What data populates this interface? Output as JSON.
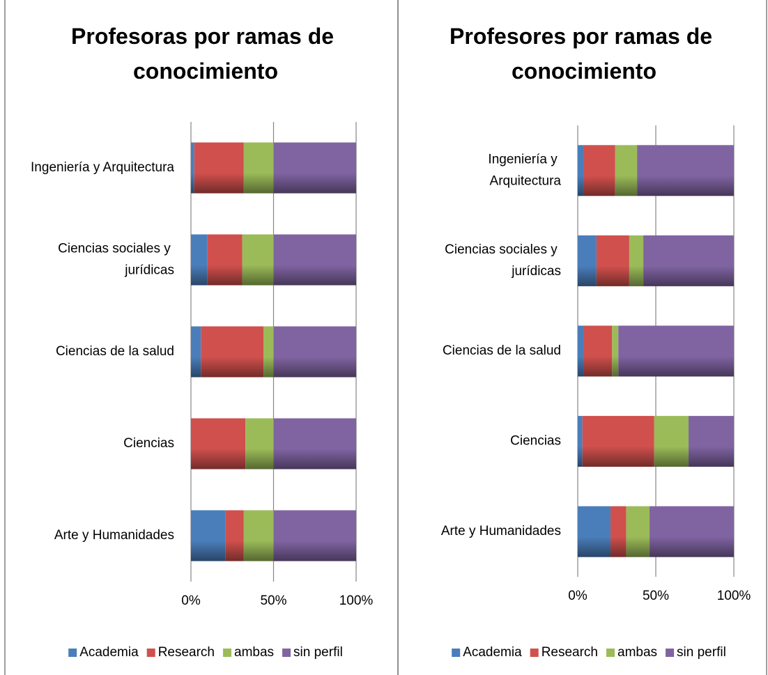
{
  "charts": [
    {
      "chart_data": {
        "type": "stacked-bar-horizontal",
        "title": "Profesoras por ramas de conocimiento",
        "categories": [
          "Ingeniería y Arquitectura",
          "Ciencias sociales y jurídicas",
          "Ciencias de la salud",
          "Ciencias",
          "Arte y Humanidades"
        ],
        "series": [
          {
            "name": "Academia",
            "color": "#4a7ebb",
            "values": [
              2,
              10,
              6,
              0,
              21
            ]
          },
          {
            "name": "Research",
            "color": "#d0504d",
            "values": [
              30,
              21,
              38,
              33,
              11
            ]
          },
          {
            "name": "ambas",
            "color": "#9bbb59",
            "values": [
              18,
              19,
              6,
              17,
              18
            ]
          },
          {
            "name": "sin perfil",
            "color": "#8064a2",
            "values": [
              50,
              50,
              50,
              50,
              50
            ]
          }
        ],
        "xlim": [
          0,
          100
        ],
        "xticks": [
          {
            "value": 0,
            "label": "0%"
          },
          {
            "value": 50,
            "label": "50%"
          },
          {
            "value": 100,
            "label": "100%"
          }
        ],
        "grid": true,
        "legend": "bottom"
      }
    },
    {
      "chart_data": {
        "type": "stacked-bar-horizontal",
        "title": "Profesores por ramas de conocimiento",
        "categories": [
          "Ingeniería y Arquitectura",
          "Ciencias sociales y jurídicas",
          "Ciencias de la salud",
          "Ciencias",
          "Arte y Humanidades"
        ],
        "series": [
          {
            "name": "Academia",
            "color": "#4a7ebb",
            "values": [
              4,
              12,
              4,
              3,
              21
            ]
          },
          {
            "name": "Research",
            "color": "#d0504d",
            "values": [
              20,
              21,
              18,
              46,
              10
            ]
          },
          {
            "name": "ambas",
            "color": "#9bbb59",
            "values": [
              14,
              9,
              4,
              22,
              15
            ]
          },
          {
            "name": "sin perfil",
            "color": "#8064a2",
            "values": [
              62,
              58,
              74,
              29,
              54
            ]
          }
        ],
        "xlim": [
          0,
          100
        ],
        "xticks": [
          {
            "value": 0,
            "label": "0%"
          },
          {
            "value": 50,
            "label": "50%"
          },
          {
            "value": 100,
            "label": "100%"
          }
        ],
        "grid": true,
        "legend": "bottom"
      }
    }
  ]
}
